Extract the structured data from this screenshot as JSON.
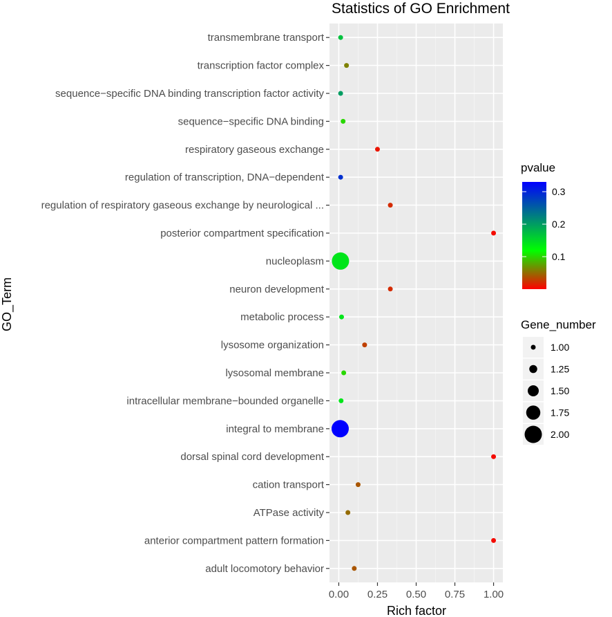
{
  "chart_data": {
    "type": "scatter",
    "title": "Statistics of GO Enrichment",
    "xlabel": "Rich factor",
    "ylabel": "GO_Term",
    "xlim": [
      -0.06,
      1.06
    ],
    "xticks": [
      0.0,
      0.25,
      0.5,
      0.75,
      1.0
    ],
    "xtick_labels": [
      "0.00",
      "0.25",
      "0.50",
      "0.75",
      "1.00"
    ],
    "grid": true,
    "terms": [
      "transmembrane transport",
      "transcription factor complex",
      "sequence−specific DNA binding transcription factor activity",
      "sequence−specific DNA binding",
      "respiratory gaseous exchange",
      "regulation of transcription, DNA−dependent",
      "regulation of respiratory gaseous exchange by neurological ...",
      "posterior compartment specification",
      "nucleoplasm",
      "neuron development",
      "metabolic process",
      "lysosome organization",
      "lysosomal membrane",
      "intracellular membrane−bounded organelle",
      "integral to membrane",
      "dorsal spinal cord development",
      "cation transport",
      "ATPase activity",
      "anterior compartment pattern formation",
      "adult locomotory behavior"
    ],
    "rich_factor": [
      0.012,
      0.05,
      0.012,
      0.028,
      0.25,
      0.012,
      0.333,
      1.0,
      0.011,
      0.333,
      0.018,
      0.167,
      0.032,
      0.015,
      0.009,
      1.0,
      0.125,
      0.059,
      1.0,
      0.1
    ],
    "pvalue": [
      0.17,
      0.06,
      0.2,
      0.1,
      0.01,
      0.29,
      0.02,
      0.005,
      0.14,
      0.02,
      0.14,
      0.03,
      0.1,
      0.14,
      0.33,
      0.005,
      0.04,
      0.05,
      0.005,
      0.04
    ],
    "gene_number": [
      1,
      1,
      1,
      1,
      1,
      1,
      1,
      1,
      2,
      1,
      1,
      1,
      1,
      1,
      2,
      1,
      1,
      1,
      1,
      1
    ],
    "color_legend": {
      "title": "pvalue",
      "ticks": [
        0.3,
        0.2,
        0.1
      ],
      "tick_labels": [
        "0.3",
        "0.2",
        "0.1"
      ],
      "range": [
        0.0,
        0.33
      ],
      "low_color": "#ff0000",
      "mid_color": "#00ff00",
      "high_color": "#0000ff"
    },
    "size_legend": {
      "title": "Gene_number",
      "values": [
        1.0,
        1.25,
        1.5,
        1.75,
        2.0
      ],
      "labels": [
        "1.00",
        "1.25",
        "1.50",
        "1.75",
        "2.00"
      ]
    },
    "legend_position": "right"
  }
}
